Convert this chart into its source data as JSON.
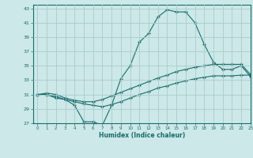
{
  "xlabel": "Humidex (Indice chaleur)",
  "xlim": [
    -0.5,
    23
  ],
  "ylim": [
    27,
    43.5
  ],
  "yticks": [
    27,
    29,
    31,
    33,
    35,
    37,
    39,
    41,
    43
  ],
  "xticks": [
    0,
    1,
    2,
    3,
    4,
    5,
    6,
    7,
    8,
    9,
    10,
    11,
    12,
    13,
    14,
    15,
    16,
    17,
    18,
    19,
    20,
    21,
    22,
    23
  ],
  "bg_color": "#cce8e8",
  "grid_color": "#aacccc",
  "line_color": "#1a6b6b",
  "line1_x": [
    0,
    1,
    2,
    3,
    4,
    5,
    6,
    7,
    8,
    9,
    10,
    11,
    12,
    13,
    14,
    15,
    16,
    17,
    18,
    19,
    20,
    21,
    22,
    23
  ],
  "line1_y": [
    31,
    31,
    30.5,
    30.3,
    29.5,
    27.2,
    27.2,
    26.7,
    29.5,
    33.2,
    35.0,
    38.3,
    39.5,
    41.8,
    42.8,
    42.5,
    42.5,
    41.0,
    38.0,
    35.5,
    34.5,
    34.5,
    35.0,
    33.5
  ],
  "line2_x": [
    0,
    1,
    2,
    3,
    4,
    5,
    6,
    7,
    8,
    9,
    10,
    11,
    12,
    13,
    14,
    15,
    16,
    17,
    18,
    19,
    20,
    21,
    22,
    23
  ],
  "line2_y": [
    31.0,
    31.2,
    31.0,
    30.5,
    30.2,
    30.0,
    30.0,
    30.3,
    30.8,
    31.3,
    31.8,
    32.3,
    32.8,
    33.3,
    33.7,
    34.2,
    34.5,
    34.8,
    35.0,
    35.2,
    35.2,
    35.2,
    35.2,
    33.8
  ],
  "line3_x": [
    0,
    1,
    2,
    3,
    4,
    5,
    6,
    7,
    8,
    9,
    10,
    11,
    12,
    13,
    14,
    15,
    16,
    17,
    18,
    19,
    20,
    21,
    22,
    23
  ],
  "line3_y": [
    31.0,
    31.0,
    30.7,
    30.3,
    30.0,
    29.7,
    29.5,
    29.3,
    29.6,
    30.0,
    30.5,
    31.0,
    31.4,
    31.9,
    32.2,
    32.6,
    32.9,
    33.2,
    33.4,
    33.6,
    33.6,
    33.6,
    33.7,
    33.7
  ]
}
